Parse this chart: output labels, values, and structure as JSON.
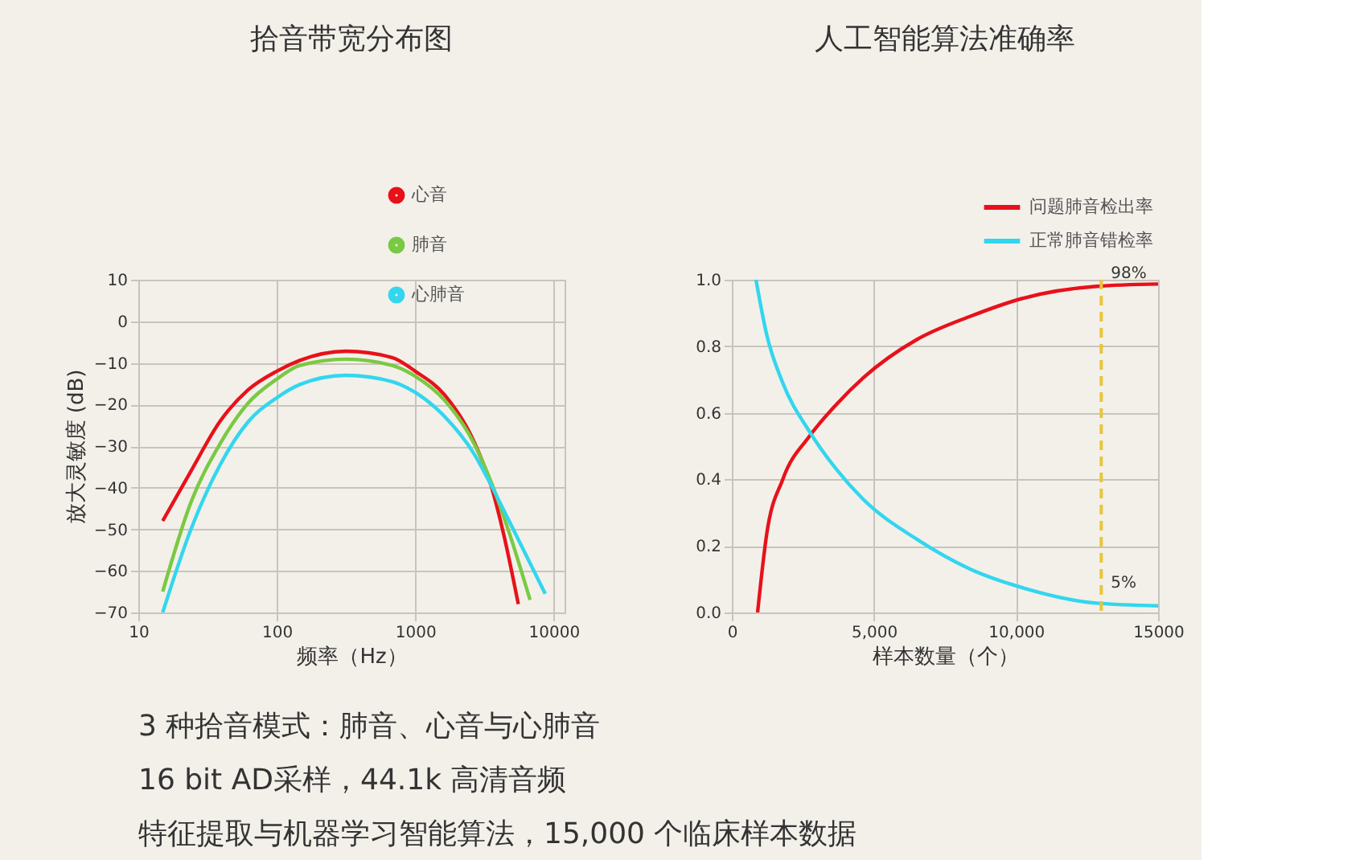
{
  "chart_data": [
    {
      "type": "line",
      "title": "拾音带宽分布图",
      "xlabel": "频率（Hz）",
      "ylabel": "放大灵敏度 (dB)",
      "log": "x",
      "xlim": [
        10,
        12000
      ],
      "xticks": [
        10,
        100,
        1000,
        10000
      ],
      "ylim": [
        -70,
        10
      ],
      "yticks": [
        -70,
        -60,
        -50,
        -40,
        -30,
        -20,
        -10,
        0,
        10
      ],
      "grid": true,
      "legend": "top right",
      "line_style": "solid",
      "series": [
        {
          "name": "心音",
          "color": "#e8111a",
          "x": [
            15,
            24,
            39,
            62,
            100,
            147,
            316,
            681,
            1000,
            1632,
            2666,
            3573,
            4345,
            5560
          ],
          "values": [
            -48,
            -36,
            -24,
            -16.5,
            -12,
            -9.4,
            -7.2,
            -8.7,
            -12,
            -17.7,
            -29,
            -40,
            -51,
            -68
          ]
        },
        {
          "name": "肺音",
          "color": "#7ac943",
          "x": [
            15,
            24,
            39,
            62,
            100,
            147,
            316,
            681,
            1000,
            1632,
            2666,
            3573,
            4797,
            6760
          ],
          "values": [
            -65,
            -43.5,
            -29.4,
            -19.7,
            -13.9,
            -10.6,
            -9.1,
            -10.6,
            -13.2,
            -19,
            -29.4,
            -39,
            -51,
            -67
          ]
        },
        {
          "name": "心肺音",
          "color": "#33d6ee",
          "x": [
            15,
            24,
            39,
            62,
            100,
            147,
            316,
            681,
            1000,
            1632,
            2666,
            3573,
            5290,
            8700
          ],
          "values": [
            -70,
            -50,
            -34.5,
            -24.2,
            -18.4,
            -15.2,
            -13,
            -14.5,
            -17.1,
            -22.9,
            -31.9,
            -39.7,
            -51,
            -65.5
          ]
        }
      ]
    },
    {
      "type": "line",
      "title": "人工智能算法准确率",
      "xlabel": "样本数量（个）",
      "xlim": [
        0,
        15000
      ],
      "xticks": [
        0,
        {
          "value": 5000,
          "label": "5,000"
        },
        {
          "value": 10000,
          "label": "10,000"
        },
        15000
      ],
      "ylim": [
        0,
        1
      ],
      "yticks": [
        {
          "value": 0,
          "label": "0.0"
        },
        0.2,
        0.4,
        0.6,
        0.8,
        {
          "value": 1,
          "label": "1.0"
        }
      ],
      "grid": true,
      "legend": "top right",
      "line_style": "solid",
      "series": [
        {
          "name": "问题肺音检出率",
          "color": "#e8111a",
          "x": [
            906,
            1226,
            1792,
            2736,
            3679,
            4623,
            6509,
            8396,
            10283,
            12830,
            15000
          ],
          "values": [
            0,
            0.235,
            0.4,
            0.53,
            0.625,
            0.705,
            0.82,
            0.89,
            0.945,
            0.98,
            0.987
          ]
        },
        {
          "name": "正常肺音错检率",
          "color": "#33d6ee",
          "x": [
            850,
            1226,
            1792,
            2736,
            3679,
            4623,
            6509,
            8396,
            10283,
            12830,
            15000
          ],
          "values": [
            1,
            0.835,
            0.69,
            0.543,
            0.43,
            0.34,
            0.22,
            0.13,
            0.073,
            0.028,
            0.02
          ]
        }
      ],
      "ref_lines": [
        {
          "axis": "x",
          "value": 13000,
          "color": "#e8c53a",
          "line_style": "dashed"
        }
      ],
      "annotations": [
        {
          "text": "98%",
          "x": 13000,
          "y": 0.98
        },
        {
          "text": "5%",
          "x": 13000,
          "y": 0.05
        }
      ]
    },
    {
      "type": "other",
      "annotations": [
        "3 种拾音模式：肺音、心音与心肺音",
        "16 bit AD采样，44.1k 高清音频",
        "特征提取与机器学习智能算法，15,000 个临床样本数据"
      ]
    }
  ]
}
